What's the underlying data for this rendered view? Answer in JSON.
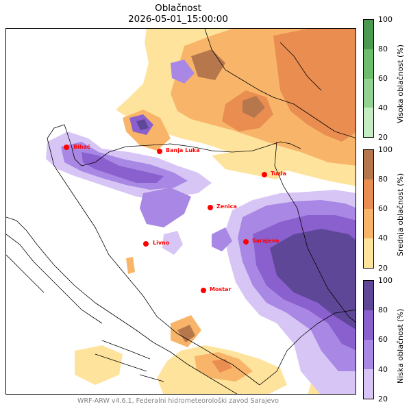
{
  "header": {
    "title": "Oblačnost",
    "timestamp": "2026-05-01_15:00:00"
  },
  "cities": [
    {
      "name": "Bihać"
    },
    {
      "name": "Banja Luka"
    },
    {
      "name": "Tuzla"
    },
    {
      "name": "Zenica"
    },
    {
      "name": "Sarajevo"
    },
    {
      "name": "Livno"
    },
    {
      "name": "Mostar"
    }
  ],
  "colorbars": [
    {
      "label": "Visoka oblačnost (%)",
      "ticks": [
        "100",
        "80",
        "60",
        "40",
        "20"
      ],
      "colors": [
        "#4a9a50",
        "#6cbd6c",
        "#92d392",
        "#c4edc4"
      ]
    },
    {
      "label": "Srednja oblačnost (%)",
      "ticks": [
        "100",
        "80",
        "60",
        "40",
        "20"
      ],
      "colors": [
        "#b7774c",
        "#e98d50",
        "#f8b56a",
        "#fee39c"
      ]
    },
    {
      "label": "Niska oblačnost (%)",
      "ticks": [
        "100",
        "80",
        "60",
        "40",
        "20"
      ],
      "colors": [
        "#5e4796",
        "#8a5fce",
        "#a888e4",
        "#d7c6f5"
      ]
    }
  ],
  "colors": {
    "city_marker": "#ff0000",
    "low_cloud": "#7c55c6",
    "mid_cloud": "#f3a55b"
  },
  "footer": {
    "credit": "WRF-ARW v4.6.1, Federalni hidrometeorološki zavod Sarajevo"
  }
}
